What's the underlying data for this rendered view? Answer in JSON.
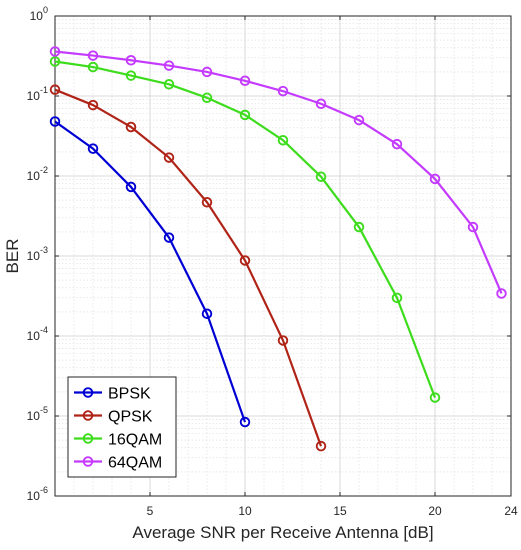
{
  "chart_data": {
    "type": "line",
    "title": "",
    "xlabel": "Average SNR per Receive Antenna [dB]",
    "ylabel": "BER",
    "xlim": [
      0,
      24
    ],
    "ylim": [
      1e-06,
      1
    ],
    "yscale": "log",
    "grid": true,
    "minor_grid": true,
    "legend_position": "bottom-left",
    "x_ticks": [
      {
        "value": 5,
        "label": "5"
      },
      {
        "value": 10,
        "label": "10"
      },
      {
        "value": 15,
        "label": "15"
      },
      {
        "value": 20,
        "label": "20"
      },
      {
        "value": 24,
        "label": "24"
      }
    ],
    "y_ticks": [
      {
        "value": 1,
        "base": "10",
        "exp": "0"
      },
      {
        "value": 0.1,
        "base": "10",
        "exp": "-1"
      },
      {
        "value": 0.01,
        "base": "10",
        "exp": "-2"
      },
      {
        "value": 0.001,
        "base": "10",
        "exp": "-3"
      },
      {
        "value": 0.0001,
        "base": "10",
        "exp": "-4"
      },
      {
        "value": 1e-05,
        "base": "10",
        "exp": "-5"
      },
      {
        "value": 1e-06,
        "base": "10",
        "exp": "-6"
      }
    ],
    "series": [
      {
        "name": "BPSK",
        "color": "#0000d4",
        "x": [
          0,
          2,
          4,
          6,
          8,
          10
        ],
        "y": [
          0.048,
          0.022,
          0.0073,
          0.0017,
          0.00019,
          8.4e-06
        ]
      },
      {
        "name": "QPSK",
        "color": "#b02418",
        "x": [
          0,
          2,
          4,
          6,
          8,
          10,
          12,
          14
        ],
        "y": [
          0.12,
          0.077,
          0.041,
          0.017,
          0.0047,
          0.00088,
          8.8e-05,
          4.2e-06
        ]
      },
      {
        "name": "16QAM",
        "color": "#3ddc1c",
        "x": [
          0,
          2,
          4,
          6,
          8,
          10,
          12,
          14,
          16,
          18,
          20
        ],
        "y": [
          0.27,
          0.23,
          0.18,
          0.14,
          0.095,
          0.058,
          0.028,
          0.0098,
          0.0023,
          0.0003,
          1.7e-05
        ]
      },
      {
        "name": "64QAM",
        "color": "#c43bff",
        "x": [
          0,
          2,
          4,
          6,
          8,
          10,
          12,
          14,
          16,
          18,
          20,
          22,
          23.5
        ],
        "y": [
          0.36,
          0.32,
          0.28,
          0.24,
          0.2,
          0.155,
          0.115,
          0.08,
          0.05,
          0.025,
          0.0092,
          0.0023,
          0.00034
        ]
      }
    ]
  }
}
